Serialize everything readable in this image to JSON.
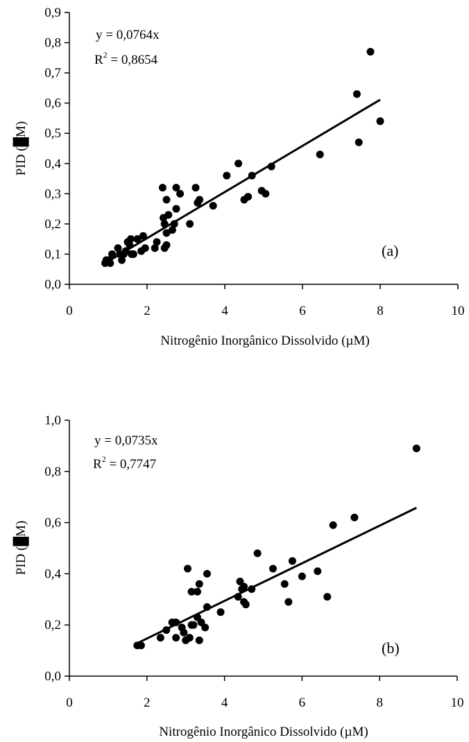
{
  "chart_data": [
    {
      "type": "scatter",
      "panel_label": "(a)",
      "equation": "y = 0,0764x",
      "r2_prefix": "R",
      "r2_exp": "2",
      "r2_value": " = 0,8654",
      "xlabel": "Nitrogênio Inorgânico Dissolvido (µM)",
      "ylabel_prefix": "PID (",
      "ylabel_suffix": "M)",
      "xlim": [
        0,
        10
      ],
      "ylim": [
        0,
        0.9
      ],
      "x_ticks": [
        "0",
        "2",
        "4",
        "6",
        "8",
        "10"
      ],
      "y_ticks": [
        "0,0",
        "0,1",
        "0,2",
        "0,3",
        "0,4",
        "0,5",
        "0,6",
        "0,7",
        "0,8",
        "0,9"
      ],
      "trend": {
        "slope": 0.0764,
        "x_start": 0.9,
        "x_end": 8.0
      },
      "points": [
        [
          0.92,
          0.07
        ],
        [
          0.95,
          0.08
        ],
        [
          1.0,
          0.08
        ],
        [
          1.05,
          0.07
        ],
        [
          1.1,
          0.1
        ],
        [
          1.25,
          0.12
        ],
        [
          1.3,
          0.1
        ],
        [
          1.35,
          0.08
        ],
        [
          1.4,
          0.1
        ],
        [
          1.45,
          0.11
        ],
        [
          1.5,
          0.14
        ],
        [
          1.55,
          0.13
        ],
        [
          1.58,
          0.15
        ],
        [
          1.6,
          0.1
        ],
        [
          1.65,
          0.1
        ],
        [
          1.75,
          0.15
        ],
        [
          1.85,
          0.11
        ],
        [
          1.9,
          0.16
        ],
        [
          1.95,
          0.12
        ],
        [
          2.2,
          0.12
        ],
        [
          2.25,
          0.14
        ],
        [
          2.4,
          0.32
        ],
        [
          2.42,
          0.22
        ],
        [
          2.45,
          0.2
        ],
        [
          2.45,
          0.12
        ],
        [
          2.5,
          0.28
        ],
        [
          2.5,
          0.13
        ],
        [
          2.5,
          0.17
        ],
        [
          2.55,
          0.23
        ],
        [
          2.65,
          0.18
        ],
        [
          2.7,
          0.2
        ],
        [
          2.75,
          0.32
        ],
        [
          2.75,
          0.25
        ],
        [
          2.85,
          0.3
        ],
        [
          3.1,
          0.2
        ],
        [
          3.25,
          0.32
        ],
        [
          3.3,
          0.27
        ],
        [
          3.35,
          0.28
        ],
        [
          3.7,
          0.26
        ],
        [
          4.05,
          0.36
        ],
        [
          4.35,
          0.4
        ],
        [
          4.5,
          0.28
        ],
        [
          4.6,
          0.29
        ],
        [
          4.7,
          0.36
        ],
        [
          4.95,
          0.31
        ],
        [
          5.05,
          0.3
        ],
        [
          5.2,
          0.39
        ],
        [
          6.45,
          0.43
        ],
        [
          7.4,
          0.63
        ],
        [
          7.45,
          0.47
        ],
        [
          7.75,
          0.77
        ],
        [
          8.0,
          0.54
        ]
      ]
    },
    {
      "type": "scatter",
      "panel_label": "(b)",
      "equation": "y = 0,0735x",
      "r2_prefix": "R",
      "r2_exp": "2",
      "r2_value": " = 0,7747",
      "xlabel": "Nitrogênio Inorgânico Dissolvido (µM)",
      "ylabel_prefix": "PID (",
      "ylabel_suffix": "M)",
      "xlim": [
        0,
        10
      ],
      "ylim": [
        0,
        1.0
      ],
      "x_ticks": [
        "0",
        "2",
        "4",
        "6",
        "8",
        "10"
      ],
      "y_ticks": [
        "0,0",
        "0,2",
        "0,4",
        "0,6",
        "0,8",
        "1,0"
      ],
      "trend": {
        "slope": 0.0735,
        "x_start": 1.75,
        "x_end": 8.95
      },
      "points": [
        [
          1.75,
          0.12
        ],
        [
          1.85,
          0.12
        ],
        [
          2.35,
          0.15
        ],
        [
          2.5,
          0.18
        ],
        [
          2.65,
          0.21
        ],
        [
          2.75,
          0.21
        ],
        [
          2.75,
          0.15
        ],
        [
          2.9,
          0.19
        ],
        [
          2.95,
          0.17
        ],
        [
          3.0,
          0.14
        ],
        [
          3.05,
          0.42
        ],
        [
          3.1,
          0.15
        ],
        [
          3.15,
          0.33
        ],
        [
          3.15,
          0.2
        ],
        [
          3.2,
          0.2
        ],
        [
          3.3,
          0.23
        ],
        [
          3.3,
          0.33
        ],
        [
          3.35,
          0.36
        ],
        [
          3.35,
          0.14
        ],
        [
          3.4,
          0.21
        ],
        [
          3.5,
          0.19
        ],
        [
          3.55,
          0.4
        ],
        [
          3.55,
          0.27
        ],
        [
          3.9,
          0.25
        ],
        [
          4.35,
          0.31
        ],
        [
          4.4,
          0.37
        ],
        [
          4.45,
          0.34
        ],
        [
          4.5,
          0.29
        ],
        [
          4.5,
          0.35
        ],
        [
          4.55,
          0.28
        ],
        [
          4.7,
          0.34
        ],
        [
          4.85,
          0.48
        ],
        [
          5.25,
          0.42
        ],
        [
          5.55,
          0.36
        ],
        [
          5.65,
          0.29
        ],
        [
          5.75,
          0.45
        ],
        [
          6.0,
          0.39
        ],
        [
          6.4,
          0.41
        ],
        [
          6.65,
          0.31
        ],
        [
          6.8,
          0.59
        ],
        [
          7.35,
          0.62
        ],
        [
          8.95,
          0.89
        ]
      ]
    }
  ]
}
